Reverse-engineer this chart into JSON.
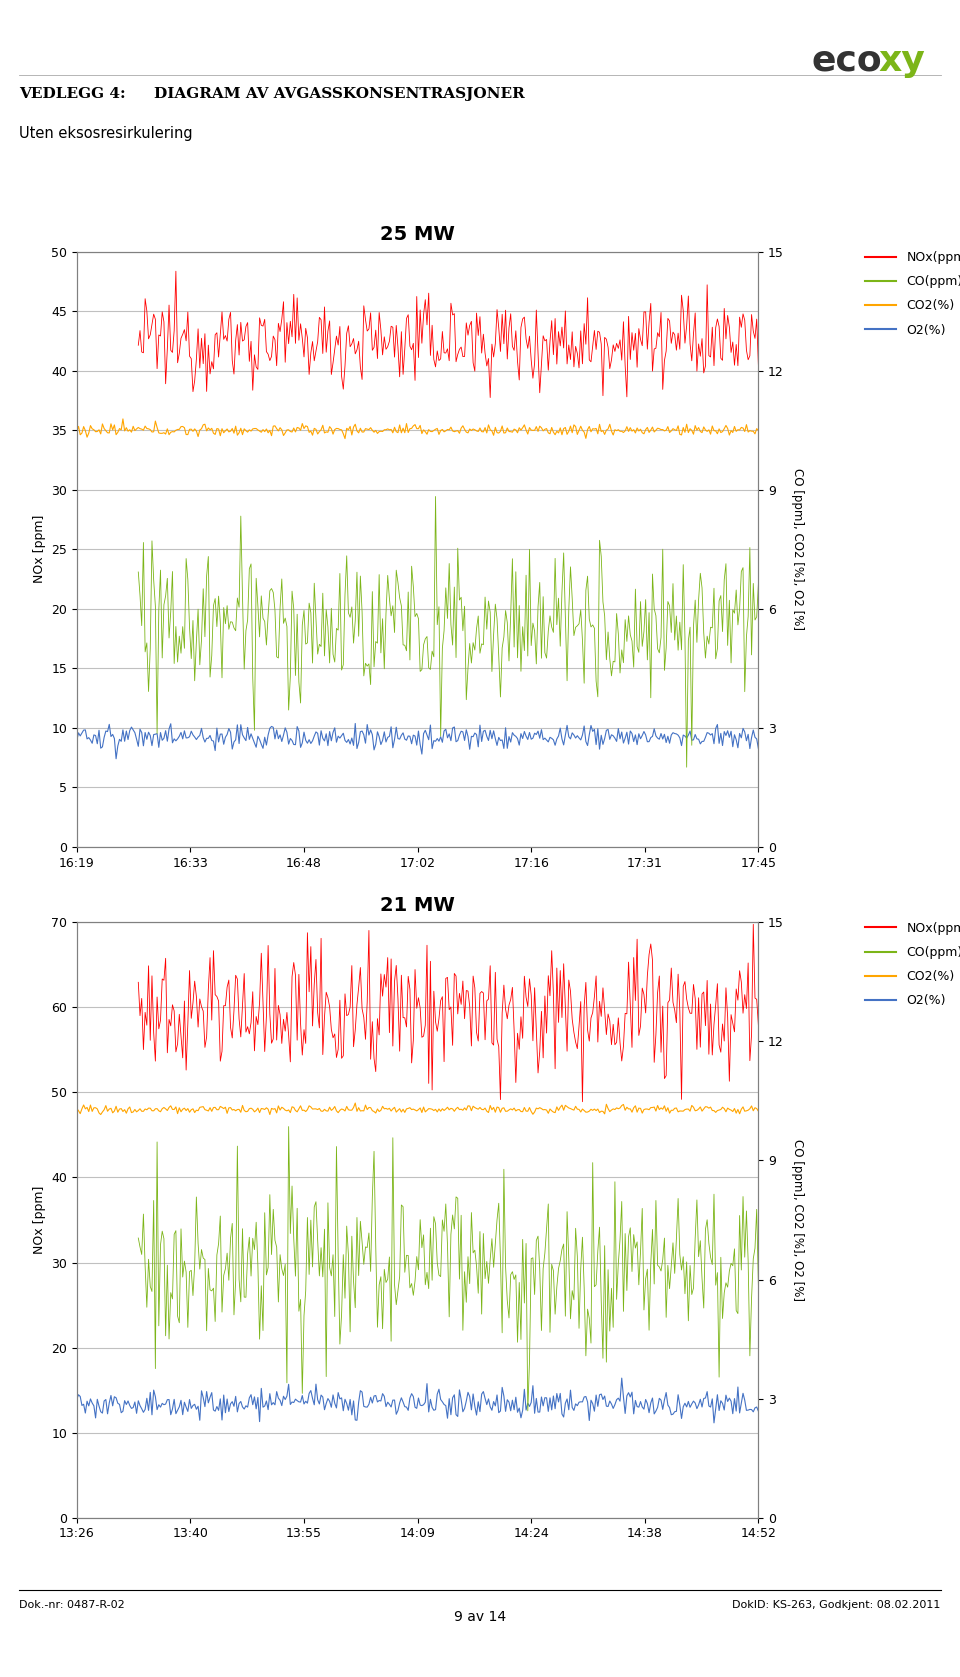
{
  "chart1": {
    "title": "25 MW",
    "x_labels": [
      "16:19",
      "16:33",
      "16:48",
      "17:02",
      "17:16",
      "17:31",
      "17:45"
    ],
    "nox_mean": 42.5,
    "nox_noise": 1.2,
    "co2_mean": 35.0,
    "co2_noise": 0.3,
    "co_mean": 18.5,
    "co_noise": 1.5,
    "o2_mean": 9.2,
    "o2_noise": 0.4,
    "ylim_left": [
      0,
      50
    ],
    "ylim_right": [
      0,
      15
    ],
    "yticks_left": [
      0,
      5,
      10,
      15,
      20,
      25,
      30,
      35,
      40,
      45,
      50
    ],
    "yticks_right": [
      0,
      3,
      6,
      9,
      12,
      15
    ]
  },
  "chart2": {
    "title": "21 MW",
    "x_labels": [
      "13:26",
      "13:40",
      "13:55",
      "14:09",
      "14:24",
      "14:38",
      "14:52"
    ],
    "nox_mean": 60.0,
    "nox_noise": 2.5,
    "co2_mean": 48.0,
    "co2_noise": 0.3,
    "co_mean": 29.0,
    "co_noise": 2.5,
    "o2_mean": 13.5,
    "o2_noise": 0.7,
    "ylim_left": [
      0,
      70
    ],
    "ylim_right": [
      0,
      15
    ],
    "yticks_left": [
      0,
      10,
      20,
      30,
      40,
      50,
      60,
      70
    ],
    "yticks_right": [
      0,
      3,
      6,
      9,
      12,
      15
    ]
  },
  "colors": {
    "nox": "#FF0000",
    "co": "#7CB518",
    "co2": "#FFA500",
    "o2": "#4472C4",
    "border": "#808080",
    "grid": "#C0C0C0"
  },
  "ylabel_left": "NOx [ppm]",
  "ylabel_right": "CO [ppm], CO2 [%], O2 [%]",
  "footer_left": "Dok.-nr: 0487-R-02",
  "footer_right": "DokID: KS-263, Godkjent: 08.02.2011",
  "page_number": "9 av 14",
  "background_color": "#FFFFFF"
}
